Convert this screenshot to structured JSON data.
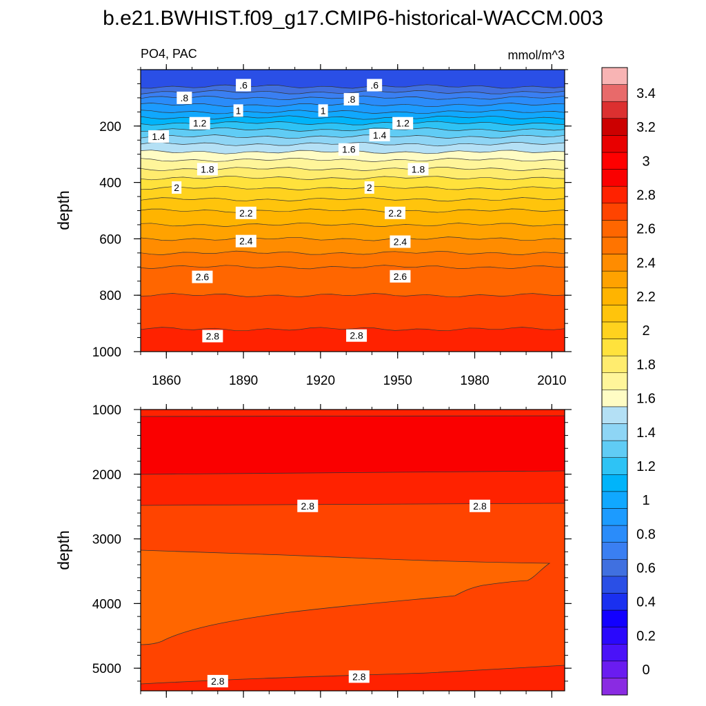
{
  "title": "b.e21.BWHIST.f09_g17.CMIP6-historical-WACCM.003",
  "chart_data": [
    {
      "type": "contour",
      "panel": "upper",
      "left_label": "PO4, PAC",
      "right_label": "mmol/m^3",
      "ylabel": "depth",
      "xlabel": "",
      "xlim": [
        1850,
        2015
      ],
      "ylim": [
        1000,
        0
      ],
      "x_tick_labels": [
        "1860",
        "1890",
        "1920",
        "1950",
        "1980",
        "2010"
      ],
      "x_tick_values": [
        1860,
        1890,
        1920,
        1950,
        1980,
        2010
      ],
      "y_tick_labels": [
        "200",
        "400",
        "600",
        "800",
        "1000"
      ],
      "y_tick_values": [
        200,
        400,
        600,
        800,
        1000
      ],
      "contour_interval": 0.1,
      "depth_profile": [
        {
          "depth": 0,
          "value": 0.5
        },
        {
          "depth": 50,
          "value": 0.55
        },
        {
          "depth": 100,
          "value": 0.8
        },
        {
          "depth": 150,
          "value": 1.0
        },
        {
          "depth": 200,
          "value": 1.25
        },
        {
          "depth": 250,
          "value": 1.45
        },
        {
          "depth": 320,
          "value": 1.7
        },
        {
          "depth": 400,
          "value": 1.95
        },
        {
          "depth": 500,
          "value": 2.2
        },
        {
          "depth": 600,
          "value": 2.4
        },
        {
          "depth": 700,
          "value": 2.6
        },
        {
          "depth": 800,
          "value": 2.7
        },
        {
          "depth": 900,
          "value": 2.78
        },
        {
          "depth": 1000,
          "value": 2.88
        }
      ],
      "contour_labels": [
        {
          "text": ".6",
          "x": 1890,
          "depth": 55
        },
        {
          "text": ".6",
          "x": 1941,
          "depth": 55
        },
        {
          "text": ".8",
          "x": 1867,
          "depth": 100
        },
        {
          "text": ".8",
          "x": 1932,
          "depth": 105
        },
        {
          "text": "1",
          "x": 1888,
          "depth": 145
        },
        {
          "text": "1",
          "x": 1921,
          "depth": 145
        },
        {
          "text": "1.2",
          "x": 1873,
          "depth": 190
        },
        {
          "text": "1.2",
          "x": 1952,
          "depth": 190
        },
        {
          "text": "1.4",
          "x": 1857,
          "depth": 237
        },
        {
          "text": "1.4",
          "x": 1943,
          "depth": 232
        },
        {
          "text": "1.6",
          "x": 1931,
          "depth": 283
        },
        {
          "text": "1.8",
          "x": 1876,
          "depth": 353
        },
        {
          "text": "1.8",
          "x": 1958,
          "depth": 353
        },
        {
          "text": "2",
          "x": 1864,
          "depth": 418
        },
        {
          "text": "2",
          "x": 1939,
          "depth": 418
        },
        {
          "text": "2.2",
          "x": 1891,
          "depth": 508
        },
        {
          "text": "2.2",
          "x": 1949,
          "depth": 508
        },
        {
          "text": "2.4",
          "x": 1891,
          "depth": 608
        },
        {
          "text": "2.4",
          "x": 1951,
          "depth": 610
        },
        {
          "text": "2.6",
          "x": 1874,
          "depth": 735
        },
        {
          "text": "2.6",
          "x": 1951,
          "depth": 733
        },
        {
          "text": "2.8",
          "x": 1878,
          "depth": 945
        },
        {
          "text": "2.8",
          "x": 1934,
          "depth": 943
        }
      ]
    },
    {
      "type": "contour",
      "panel": "lower",
      "ylabel": "depth",
      "xlim": [
        1850,
        2015
      ],
      "ylim": [
        5350,
        1000
      ],
      "y_tick_labels": [
        "1000",
        "2000",
        "3000",
        "4000",
        "5000"
      ],
      "y_tick_values": [
        1000,
        2000,
        3000,
        4000,
        5000
      ],
      "contour_labels": [
        {
          "text": "2.8",
          "x": 1915,
          "depth": 2490
        },
        {
          "text": "2.8",
          "x": 1982,
          "depth": 2490
        },
        {
          "text": "2.8",
          "x": 1880,
          "depth": 5200
        },
        {
          "text": "2.8",
          "x": 1935,
          "depth": 5130
        }
      ],
      "bands": [
        {
          "name": "2.9-3.0",
          "color": "#ff2200"
        },
        {
          "name": "3.0-3.1",
          "color": "#fa0000"
        },
        {
          "name": "2.8-2.9",
          "color": "#ff4400"
        },
        {
          "name": "2.7-2.8",
          "color": "#ff6600"
        }
      ]
    }
  ],
  "colorbar": {
    "tick_labels": [
      "0",
      "0.2",
      "0.4",
      "0.6",
      "0.8",
      "1",
      "1.2",
      "1.4",
      "1.6",
      "1.8",
      "2",
      "2.2",
      "2.4",
      "2.6",
      "2.8",
      "3",
      "3.2",
      "3.4"
    ],
    "tick_values": [
      0,
      0.2,
      0.4,
      0.6,
      0.8,
      1.0,
      1.2,
      1.4,
      1.6,
      1.8,
      2.0,
      2.2,
      2.4,
      2.6,
      2.8,
      3.0,
      3.2,
      3.4
    ],
    "levels_min": -0.1,
    "level_step": 0.1,
    "colors": [
      "#8a2be2",
      "#6a1cf0",
      "#4a12f8",
      "#2a08fc",
      "#1200ff",
      "#1a30f0",
      "#2a4fe6",
      "#4070e0",
      "#3a7ff2",
      "#2a8cfa",
      "#1c9bff",
      "#10a8ff",
      "#00b4fa",
      "#2ec3f5",
      "#60ccf5",
      "#8ed5f5",
      "#b4e0f5",
      "#fffcc4",
      "#fff59a",
      "#ffec6e",
      "#ffe23c",
      "#ffd21e",
      "#ffc40c",
      "#ffb400",
      "#ffa200",
      "#ff8c00",
      "#ff7400",
      "#ff6600",
      "#ff4400",
      "#ff2200",
      "#fa0000",
      "#ff0000",
      "#e80000",
      "#cc0000",
      "#dc3030",
      "#e86a6a",
      "#f8b4b4"
    ]
  }
}
